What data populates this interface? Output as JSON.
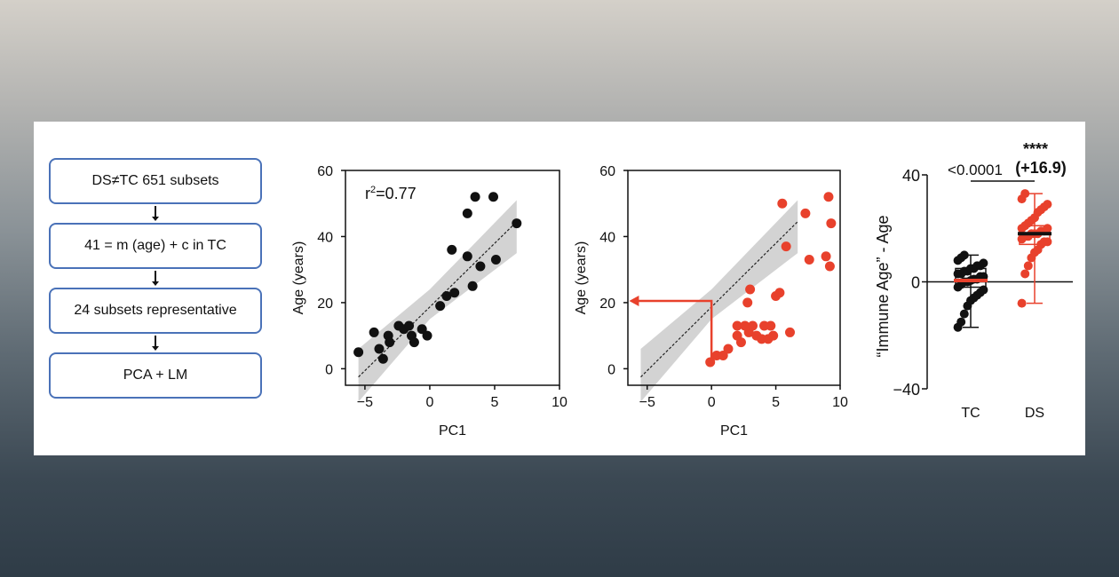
{
  "flowchart": {
    "steps": [
      "DS≠TC 651 subsets",
      "41 = m (age) + c in TC",
      "24 subsets representative",
      "PCA + LM"
    ]
  },
  "colors": {
    "tc_points": "#111111",
    "ds_points": "#e8412c",
    "arrow_red": "#e8412c",
    "ci_band": "#d3d3d3",
    "flow_border": "#4a72b8"
  },
  "chart_data": [
    {
      "type": "scatter",
      "annotation": "r²=0.77",
      "annotation_base": "r",
      "annotation_sup": "2",
      "annotation_rest": "=0.77",
      "xlabel": "PC1",
      "ylabel": "Age (years)",
      "xlim": [
        -6.5,
        10
      ],
      "ylim": [
        -5,
        60
      ],
      "xticks": [
        -5,
        0,
        5,
        10
      ],
      "yticks": [
        0,
        20,
        40,
        60
      ],
      "series": [
        {
          "color": "#111111",
          "points": [
            [
              -5.5,
              5
            ],
            [
              -4.3,
              11
            ],
            [
              -3.9,
              6
            ],
            [
              -3.6,
              3
            ],
            [
              -3.2,
              10
            ],
            [
              -3.1,
              8
            ],
            [
              -2.4,
              13
            ],
            [
              -2,
              12
            ],
            [
              -1.6,
              13
            ],
            [
              -1.4,
              10
            ],
            [
              -1.2,
              8
            ],
            [
              -0.6,
              12
            ],
            [
              -0.2,
              10
            ],
            [
              0.8,
              19
            ],
            [
              1.3,
              22
            ],
            [
              1.7,
              36
            ],
            [
              1.9,
              23
            ],
            [
              2.9,
              47
            ],
            [
              2.9,
              34
            ],
            [
              3.3,
              25
            ],
            [
              3.5,
              52
            ],
            [
              3.9,
              31
            ],
            [
              4.9,
              52
            ],
            [
              5.1,
              33
            ],
            [
              6.7,
              44
            ]
          ]
        }
      ],
      "fit": {
        "x0": -5.5,
        "y0": -2.5,
        "x1": 6.7,
        "y1": 44.5
      },
      "ci": {
        "upper": [
          [
            -5.5,
            6
          ],
          [
            0,
            24
          ],
          [
            6.7,
            51
          ]
        ],
        "lower": [
          [
            -5.5,
            -10
          ],
          [
            0,
            15
          ],
          [
            6.7,
            35
          ]
        ]
      }
    },
    {
      "type": "scatter",
      "xlabel": "PC1",
      "ylabel": "Age (years)",
      "xlim": [
        -6.5,
        10
      ],
      "ylim": [
        -5,
        60
      ],
      "xticks": [
        -5,
        0,
        5,
        10
      ],
      "yticks": [
        0,
        20,
        40,
        60
      ],
      "series": [
        {
          "color": "#e8412c",
          "points": [
            [
              -0.1,
              2
            ],
            [
              0.4,
              4
            ],
            [
              0.9,
              4
            ],
            [
              1.3,
              6
            ],
            [
              2,
              10
            ],
            [
              2,
              13
            ],
            [
              2.3,
              8
            ],
            [
              2.6,
              13
            ],
            [
              2.8,
              20
            ],
            [
              2.9,
              11
            ],
            [
              3,
              24
            ],
            [
              3.2,
              13
            ],
            [
              3.5,
              10
            ],
            [
              3.9,
              9
            ],
            [
              4.1,
              13
            ],
            [
              4.4,
              9
            ],
            [
              4.6,
              13
            ],
            [
              4.8,
              10
            ],
            [
              5,
              22
            ],
            [
              5.3,
              23
            ],
            [
              5.5,
              50
            ],
            [
              5.8,
              37
            ],
            [
              6.1,
              11
            ],
            [
              7.3,
              47
            ],
            [
              7.6,
              33
            ],
            [
              8.9,
              34
            ],
            [
              9.1,
              52
            ],
            [
              9.2,
              31
            ],
            [
              9.3,
              44
            ]
          ]
        }
      ],
      "fit": {
        "x0": -5.5,
        "y0": -2.5,
        "x1": 6.7,
        "y1": 44.5
      },
      "ci": {
        "upper": [
          [
            -5.5,
            6
          ],
          [
            0,
            24
          ],
          [
            6.7,
            51
          ]
        ],
        "lower": [
          [
            -5.5,
            -10
          ],
          [
            0,
            15
          ],
          [
            6.7,
            35
          ]
        ]
      },
      "projection": {
        "x": 0,
        "y_start": 2,
        "y_target": 20.5,
        "x_arrow_end": -6.4
      }
    },
    {
      "type": "box",
      "ylabel": "“Immune Age” - Age",
      "ylim": [
        -40,
        40
      ],
      "yticks": [
        -40,
        0,
        40
      ],
      "categories": [
        "TC",
        "DS"
      ],
      "pvalue": "<0.0001",
      "significance": "****",
      "delta": "(+16.9)",
      "boxes": [
        {
          "name": "TC",
          "min": -17,
          "q1": -2,
          "median": 0.5,
          "q3": 5,
          "max": 10,
          "median_color": "#e8412c",
          "box_color": "#111111",
          "point_color": "#111111",
          "points": [
            -17,
            -15,
            -12,
            -9,
            -7,
            -6,
            -5,
            -4,
            -3,
            -2,
            -1,
            0,
            0,
            0.5,
            1,
            1,
            2,
            2,
            3,
            3,
            4,
            4,
            5,
            5,
            6,
            6,
            7,
            8,
            9,
            10
          ]
        },
        {
          "name": "DS",
          "min": -8,
          "q1": 14,
          "median": 18,
          "q3": 21,
          "max": 33,
          "median_color": "#111111",
          "box_color": "#e8412c",
          "point_color": "#e8412c",
          "points": [
            -8,
            3,
            6,
            9,
            11,
            12,
            14,
            15,
            15,
            16,
            17,
            17,
            18,
            18,
            18,
            19,
            19,
            20,
            20,
            21,
            22,
            23,
            24,
            26,
            27,
            28,
            29,
            31,
            33
          ]
        }
      ]
    }
  ]
}
